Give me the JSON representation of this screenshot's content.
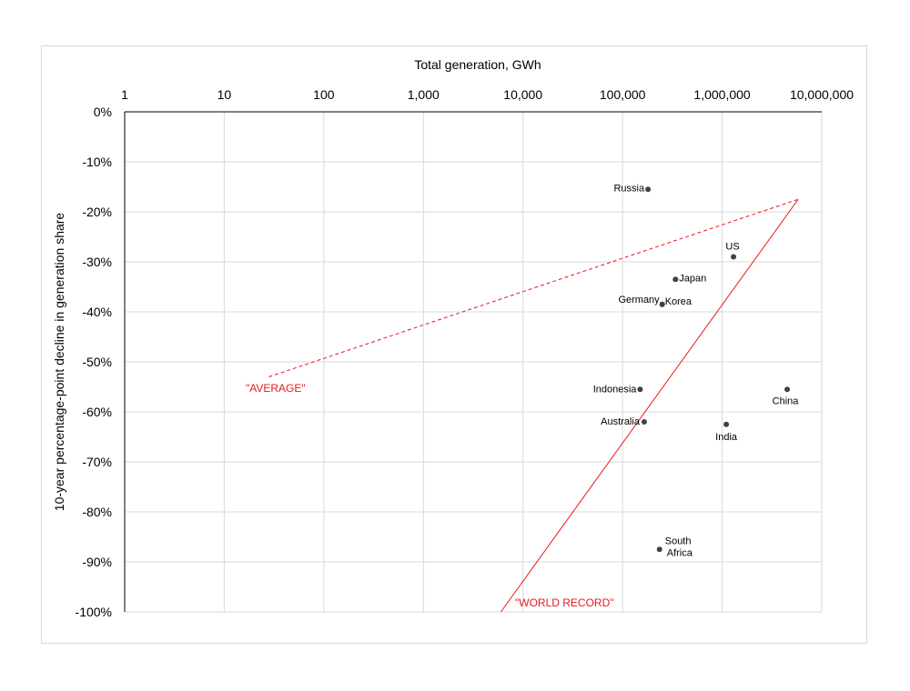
{
  "chart_data": {
    "type": "scatter",
    "xlabel": "Total generation, GWh",
    "ylabel": "10-year percentage-point decline in generation share",
    "x_scale": "log",
    "xlim": [
      1,
      10000000
    ],
    "ylim": [
      -100,
      0
    ],
    "x_ticks": [
      "1",
      "10",
      "100",
      "1,000",
      "10,000",
      "100,000",
      "1,000,000",
      "10,000,000"
    ],
    "y_ticks": [
      "0%",
      "-10%",
      "-20%",
      "-30%",
      "-40%",
      "-50%",
      "-60%",
      "-70%",
      "-80%",
      "-90%",
      "-100%"
    ],
    "grid": true,
    "points": [
      {
        "label": "Russia",
        "x": 180000,
        "y": -15.5
      },
      {
        "label": "US",
        "x": 1300000,
        "y": -29
      },
      {
        "label": "Japan",
        "x": 340000,
        "y": -33.5
      },
      {
        "label": "Germany",
        "x": 250000,
        "y": -38.5
      },
      {
        "label": "Korea",
        "x": 250000,
        "y": -38.5
      },
      {
        "label": "Indonesia",
        "x": 150000,
        "y": -55.5
      },
      {
        "label": "China",
        "x": 4500000,
        "y": -55.5
      },
      {
        "label": "Australia",
        "x": 165000,
        "y": -62
      },
      {
        "label": "India",
        "x": 1100000,
        "y": -62.5
      },
      {
        "label": "South Africa",
        "x": 235000,
        "y": -87.5
      }
    ],
    "lines": [
      {
        "name": "\"AVERAGE\"",
        "style": "dashed",
        "color": "#e8191e",
        "x": [
          28,
          5800000
        ],
        "y": [
          -53,
          -17.5
        ]
      },
      {
        "name": "\"WORLD RECORD\"",
        "style": "solid",
        "color": "#e8191e",
        "x": [
          6000,
          5800000
        ],
        "y": [
          -100,
          -17.5
        ]
      }
    ]
  }
}
